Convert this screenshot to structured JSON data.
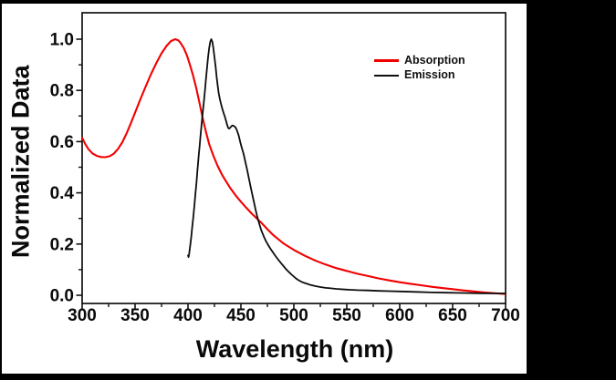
{
  "figure": {
    "background_color": "#000000",
    "plot_background_color": "#ffffff",
    "axis_color": "#111111"
  },
  "legend": {
    "items": [
      {
        "label": "Absorption",
        "color": "#f20000"
      },
      {
        "label": "Emission",
        "color": "#0d0d0d"
      }
    ]
  },
  "chart_data": {
    "type": "line",
    "title": "",
    "xlabel": "Wavelength (nm)",
    "ylabel": "Normalized Data",
    "xlim": [
      300,
      700
    ],
    "ylim": [
      -0.03,
      1.1
    ],
    "x_ticks": [
      300,
      350,
      400,
      450,
      500,
      550,
      600,
      650,
      700
    ],
    "x_minor_ticks": [
      325,
      375,
      425,
      475,
      525,
      575,
      625,
      675
    ],
    "y_ticks": [
      0.0,
      0.2,
      0.4,
      0.6,
      0.8,
      1.0
    ],
    "y_minor_ticks": [
      0.1,
      0.3,
      0.5,
      0.7,
      0.9
    ],
    "grid": false,
    "legend_position": "upper-right-inside",
    "series": [
      {
        "name": "Absorption",
        "color": "#f20000",
        "line_width": 2.1,
        "points": [
          [
            300,
            0.615
          ],
          [
            303,
            0.59
          ],
          [
            306,
            0.57
          ],
          [
            310,
            0.553
          ],
          [
            314,
            0.544
          ],
          [
            318,
            0.54
          ],
          [
            322,
            0.539
          ],
          [
            326,
            0.543
          ],
          [
            330,
            0.553
          ],
          [
            334,
            0.572
          ],
          [
            338,
            0.598
          ],
          [
            342,
            0.632
          ],
          [
            346,
            0.672
          ],
          [
            350,
            0.713
          ],
          [
            355,
            0.765
          ],
          [
            360,
            0.815
          ],
          [
            365,
            0.863
          ],
          [
            370,
            0.906
          ],
          [
            375,
            0.945
          ],
          [
            380,
            0.975
          ],
          [
            384,
            0.993
          ],
          [
            388,
            1.0
          ],
          [
            391,
            0.995
          ],
          [
            393,
            0.985
          ],
          [
            396,
            0.965
          ],
          [
            399,
            0.937
          ],
          [
            402,
            0.898
          ],
          [
            405,
            0.855
          ],
          [
            408,
            0.805
          ],
          [
            411,
            0.748
          ],
          [
            414,
            0.69
          ],
          [
            417,
            0.638
          ],
          [
            420,
            0.59
          ],
          [
            424,
            0.545
          ],
          [
            428,
            0.505
          ],
          [
            432,
            0.472
          ],
          [
            436,
            0.444
          ],
          [
            440,
            0.418
          ],
          [
            445,
            0.39
          ],
          [
            450,
            0.365
          ],
          [
            455,
            0.342
          ],
          [
            460,
            0.32
          ],
          [
            465,
            0.3
          ],
          [
            470,
            0.28
          ],
          [
            475,
            0.258
          ],
          [
            480,
            0.237
          ],
          [
            485,
            0.22
          ],
          [
            490,
            0.203
          ],
          [
            495,
            0.19
          ],
          [
            500,
            0.177
          ],
          [
            510,
            0.155
          ],
          [
            520,
            0.136
          ],
          [
            530,
            0.12
          ],
          [
            540,
            0.106
          ],
          [
            550,
            0.095
          ],
          [
            560,
            0.084
          ],
          [
            570,
            0.075
          ],
          [
            580,
            0.066
          ],
          [
            590,
            0.058
          ],
          [
            600,
            0.051
          ],
          [
            610,
            0.045
          ],
          [
            620,
            0.039
          ],
          [
            630,
            0.033
          ],
          [
            640,
            0.028
          ],
          [
            650,
            0.024
          ],
          [
            660,
            0.019
          ],
          [
            670,
            0.015
          ],
          [
            680,
            0.011
          ],
          [
            690,
            0.008
          ],
          [
            700,
            0.005
          ]
        ]
      },
      {
        "name": "Emission",
        "color": "#0d0d0d",
        "line_width": 1.8,
        "points": [
          [
            400,
            0.155
          ],
          [
            400.5,
            0.149
          ],
          [
            401,
            0.16
          ],
          [
            402,
            0.19
          ],
          [
            403,
            0.225
          ],
          [
            404,
            0.265
          ],
          [
            405,
            0.305
          ],
          [
            406,
            0.35
          ],
          [
            407,
            0.395
          ],
          [
            408,
            0.44
          ],
          [
            409,
            0.49
          ],
          [
            410,
            0.54
          ],
          [
            411,
            0.585
          ],
          [
            412,
            0.63
          ],
          [
            413,
            0.675
          ],
          [
            414,
            0.715
          ],
          [
            415,
            0.755
          ],
          [
            416,
            0.8
          ],
          [
            417,
            0.845
          ],
          [
            418,
            0.89
          ],
          [
            419,
            0.93
          ],
          [
            420,
            0.965
          ],
          [
            421,
            0.99
          ],
          [
            422,
            1.0
          ],
          [
            423,
            0.99
          ],
          [
            424,
            0.965
          ],
          [
            425,
            0.93
          ],
          [
            426,
            0.895
          ],
          [
            427,
            0.855
          ],
          [
            428,
            0.82
          ],
          [
            429,
            0.79
          ],
          [
            430,
            0.768
          ],
          [
            431,
            0.75
          ],
          [
            432,
            0.735
          ],
          [
            433,
            0.72
          ],
          [
            434,
            0.708
          ],
          [
            435,
            0.695
          ],
          [
            436,
            0.68
          ],
          [
            437,
            0.665
          ],
          [
            438,
            0.653
          ],
          [
            439,
            0.651
          ],
          [
            440,
            0.655
          ],
          [
            441,
            0.66
          ],
          [
            442,
            0.663
          ],
          [
            443,
            0.662
          ],
          [
            444,
            0.659
          ],
          [
            445,
            0.655
          ],
          [
            446,
            0.646
          ],
          [
            447,
            0.635
          ],
          [
            448,
            0.622
          ],
          [
            449,
            0.605
          ],
          [
            450,
            0.588
          ],
          [
            451,
            0.573
          ],
          [
            452,
            0.56
          ],
          [
            453,
            0.543
          ],
          [
            454,
            0.525
          ],
          [
            455,
            0.506
          ],
          [
            456,
            0.487
          ],
          [
            457,
            0.467
          ],
          [
            458,
            0.447
          ],
          [
            459,
            0.427
          ],
          [
            460,
            0.408
          ],
          [
            461,
            0.388
          ],
          [
            462,
            0.37
          ],
          [
            463,
            0.35
          ],
          [
            464,
            0.332
          ],
          [
            465,
            0.314
          ],
          [
            466,
            0.298
          ],
          [
            467,
            0.284
          ],
          [
            468,
            0.27
          ],
          [
            469,
            0.257
          ],
          [
            470,
            0.246
          ],
          [
            472,
            0.226
          ],
          [
            474,
            0.209
          ],
          [
            476,
            0.194
          ],
          [
            478,
            0.181
          ],
          [
            480,
            0.169
          ],
          [
            482,
            0.157
          ],
          [
            484,
            0.146
          ],
          [
            486,
            0.135
          ],
          [
            488,
            0.125
          ],
          [
            490,
            0.115
          ],
          [
            492,
            0.105
          ],
          [
            494,
            0.096
          ],
          [
            496,
            0.088
          ],
          [
            498,
            0.08
          ],
          [
            500,
            0.073
          ],
          [
            502,
            0.066
          ],
          [
            504,
            0.06
          ],
          [
            506,
            0.055
          ],
          [
            508,
            0.051
          ],
          [
            510,
            0.048
          ],
          [
            513,
            0.044
          ],
          [
            516,
            0.04
          ],
          [
            520,
            0.036
          ],
          [
            525,
            0.032
          ],
          [
            530,
            0.029
          ],
          [
            535,
            0.027
          ],
          [
            540,
            0.025
          ],
          [
            550,
            0.022
          ],
          [
            560,
            0.02
          ],
          [
            570,
            0.019
          ],
          [
            580,
            0.017
          ],
          [
            590,
            0.016
          ],
          [
            600,
            0.015
          ],
          [
            615,
            0.013
          ],
          [
            630,
            0.011
          ],
          [
            645,
            0.01
          ],
          [
            660,
            0.009
          ],
          [
            675,
            0.008
          ],
          [
            690,
            0.007
          ],
          [
            700,
            0.007
          ]
        ]
      }
    ]
  }
}
